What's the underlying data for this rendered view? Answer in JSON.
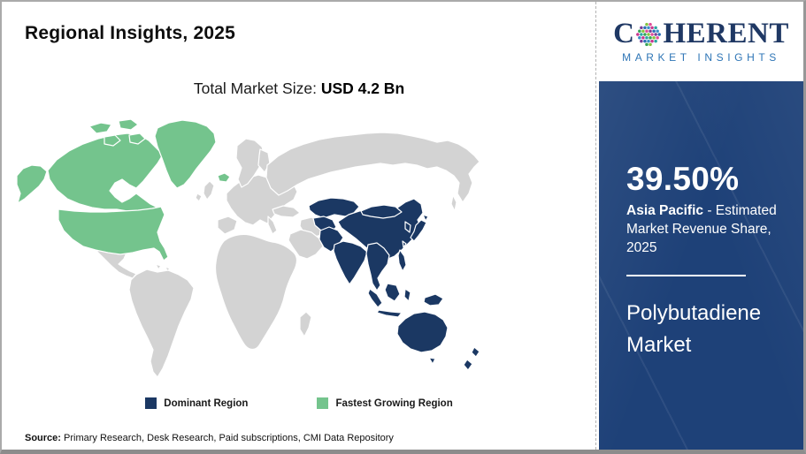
{
  "header": {
    "title": "Regional Insights, 2025",
    "market_size_label": "Total Market Size: ",
    "market_size_value": "USD 4.2 Bn"
  },
  "logo": {
    "text_start": "C",
    "text_end": "HERENT",
    "tagline": "MARKET INSIGHTS",
    "dot_palette": [
      "#2aa7a4",
      "#2c6fb7",
      "#85c441",
      "#c9368f",
      "#7a3f98",
      "#35a456",
      "#3b8ec6",
      "#e04e9a"
    ]
  },
  "map_section": {
    "legend": [
      {
        "label": "Dominant Region",
        "color": "#1b3863"
      },
      {
        "label": "Fastest Growing Region",
        "color": "#74c48d"
      }
    ],
    "regions": [
      {
        "name": "Asia Pacific",
        "status": "Dominant Region"
      },
      {
        "name": "North America",
        "status": "Fastest Growing Region"
      }
    ]
  },
  "sidebar": {
    "stat_value": "39.50%",
    "stat_region": "Asia Pacific",
    "stat_suffix": " - Estimated Market Revenue Share, 2025",
    "market_name": "Polybutadiene Market"
  },
  "footer": {
    "source_label": "Source:",
    "source_text": " Primary Research, Desk Research, Paid subscriptions, CMI Data Repository"
  },
  "colors": {
    "dominant": "#1b3863",
    "growing": "#74c48d",
    "land": "#d3d3d3",
    "panel": "#1e4178",
    "logonavy": "#1f3864",
    "logoblue": "#2e75b6"
  }
}
